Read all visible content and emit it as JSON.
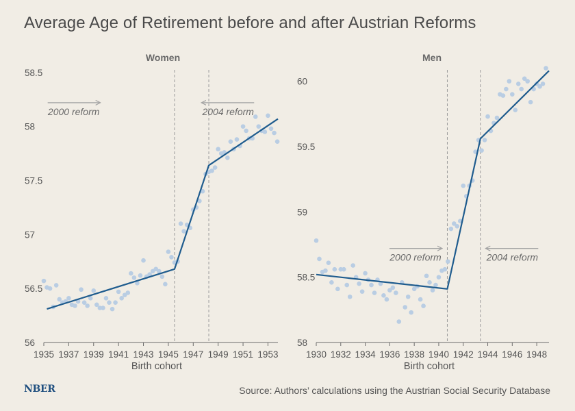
{
  "title": "Average Age of Retirement before and after Austrian Reforms",
  "logo": "NBER",
  "source": "Source: Authors’ calculations using the Austrian Social Security Database",
  "colors": {
    "background": "#f1ede5",
    "points": "#b9cde3",
    "line": "#1f5c8e",
    "ref_line": "#9a9a9a",
    "arrow": "#a3a3a3"
  },
  "chart_data": [
    {
      "type": "scatter",
      "panel_title": "Women",
      "xlabel": "Birth cohort",
      "xlim": [
        1935,
        1953.8
      ],
      "ylim": [
        56,
        58.6
      ],
      "xticks": [
        1935,
        1937,
        1939,
        1941,
        1943,
        1945,
        1947,
        1949,
        1951,
        1953
      ],
      "yticks": [
        56,
        56.5,
        57,
        57.5,
        58,
        58.5
      ],
      "ytick_labels": [
        "56",
        "56.5",
        "57",
        "57.5",
        "58",
        "58.5"
      ],
      "reference_lines": [
        1945.5,
        1948.25
      ],
      "annotations": [
        {
          "text": "2000 reform",
          "x": 1937.4,
          "y": 58.22,
          "arrow": "right"
        },
        {
          "text": "2004 reform",
          "x": 1949.8,
          "y": 58.22,
          "arrow": "left"
        }
      ],
      "points": [
        [
          1935.0,
          56.57
        ],
        [
          1935.25,
          56.51
        ],
        [
          1935.5,
          56.5
        ],
        [
          1935.75,
          56.33
        ],
        [
          1936.0,
          56.53
        ],
        [
          1936.25,
          56.4
        ],
        [
          1936.5,
          56.37
        ],
        [
          1936.75,
          56.38
        ],
        [
          1937.0,
          56.41
        ],
        [
          1937.25,
          56.35
        ],
        [
          1937.5,
          56.34
        ],
        [
          1937.75,
          56.38
        ],
        [
          1938.0,
          56.49
        ],
        [
          1938.25,
          56.37
        ],
        [
          1938.5,
          56.34
        ],
        [
          1938.75,
          56.41
        ],
        [
          1939.0,
          56.48
        ],
        [
          1939.25,
          56.35
        ],
        [
          1939.5,
          56.32
        ],
        [
          1939.75,
          56.32
        ],
        [
          1940.0,
          56.41
        ],
        [
          1940.25,
          56.37
        ],
        [
          1940.5,
          56.31
        ],
        [
          1940.75,
          56.37
        ],
        [
          1941.0,
          56.47
        ],
        [
          1941.25,
          56.41
        ],
        [
          1941.5,
          56.44
        ],
        [
          1941.75,
          56.46
        ],
        [
          1942.0,
          56.64
        ],
        [
          1942.25,
          56.6
        ],
        [
          1942.5,
          56.55
        ],
        [
          1942.75,
          56.62
        ],
        [
          1943.0,
          56.76
        ],
        [
          1943.25,
          56.61
        ],
        [
          1943.5,
          56.63
        ],
        [
          1943.75,
          56.66
        ],
        [
          1944.0,
          56.68
        ],
        [
          1944.25,
          56.66
        ],
        [
          1944.5,
          56.61
        ],
        [
          1944.75,
          56.54
        ],
        [
          1945.0,
          56.84
        ],
        [
          1945.25,
          56.79
        ],
        [
          1945.5,
          56.74
        ],
        [
          1945.75,
          56.75
        ],
        [
          1946.0,
          57.1
        ],
        [
          1946.25,
          57.03
        ],
        [
          1946.5,
          57.09
        ],
        [
          1946.75,
          57.06
        ],
        [
          1947.0,
          57.23
        ],
        [
          1947.25,
          57.25
        ],
        [
          1947.5,
          57.31
        ],
        [
          1947.75,
          57.4
        ],
        [
          1948.0,
          57.56
        ],
        [
          1948.25,
          57.58
        ],
        [
          1948.5,
          57.59
        ],
        [
          1948.75,
          57.62
        ],
        [
          1949.0,
          57.79
        ],
        [
          1949.25,
          57.75
        ],
        [
          1949.5,
          57.76
        ],
        [
          1949.75,
          57.71
        ],
        [
          1950.0,
          57.86
        ],
        [
          1950.25,
          57.79
        ],
        [
          1950.5,
          57.88
        ],
        [
          1950.75,
          57.82
        ],
        [
          1951.0,
          58.0
        ],
        [
          1951.25,
          57.96
        ],
        [
          1951.5,
          57.89
        ],
        [
          1951.75,
          57.89
        ],
        [
          1952.0,
          58.09
        ],
        [
          1952.25,
          58.0
        ],
        [
          1952.5,
          57.96
        ],
        [
          1952.75,
          57.95
        ],
        [
          1953.0,
          58.1
        ],
        [
          1953.25,
          57.98
        ],
        [
          1953.5,
          57.94
        ],
        [
          1953.75,
          57.86
        ]
      ],
      "fit": [
        [
          1935.25,
          56.31
        ],
        [
          1945.5,
          56.68
        ],
        [
          1948.25,
          57.64
        ],
        [
          1953.8,
          58.07
        ]
      ]
    },
    {
      "type": "scatter",
      "panel_title": "Men",
      "xlabel": "Birth cohort",
      "xlim": [
        1930,
        1949
      ],
      "ylim": [
        58,
        60.15
      ],
      "xticks": [
        1930,
        1932,
        1934,
        1936,
        1938,
        1940,
        1942,
        1944,
        1946,
        1948
      ],
      "yticks": [
        58,
        58.5,
        59,
        59.5,
        60
      ],
      "ytick_labels": [
        "58",
        "58.5",
        "59",
        "59.5",
        "60"
      ],
      "reference_lines": [
        1940.7,
        1943.4
      ],
      "annotations": [
        {
          "text": "2000 reform",
          "x": 1938.1,
          "y": 58.72,
          "arrow": "right"
        },
        {
          "text": "2004 reform",
          "x": 1946.0,
          "y": 58.72,
          "arrow": "left"
        }
      ],
      "points": [
        [
          1930.0,
          58.78
        ],
        [
          1930.25,
          58.64
        ],
        [
          1930.5,
          58.54
        ],
        [
          1930.75,
          58.55
        ],
        [
          1931.0,
          58.61
        ],
        [
          1931.25,
          58.46
        ],
        [
          1931.5,
          58.56
        ],
        [
          1931.75,
          58.41
        ],
        [
          1932.0,
          58.56
        ],
        [
          1932.25,
          58.56
        ],
        [
          1932.5,
          58.44
        ],
        [
          1932.75,
          58.35
        ],
        [
          1933.0,
          58.59
        ],
        [
          1933.25,
          58.5
        ],
        [
          1933.5,
          58.45
        ],
        [
          1933.75,
          58.39
        ],
        [
          1934.0,
          58.53
        ],
        [
          1934.25,
          58.48
        ],
        [
          1934.5,
          58.44
        ],
        [
          1934.75,
          58.38
        ],
        [
          1935.0,
          58.48
        ],
        [
          1935.25,
          58.45
        ],
        [
          1935.5,
          58.36
        ],
        [
          1935.75,
          58.33
        ],
        [
          1936.0,
          58.4
        ],
        [
          1936.25,
          58.42
        ],
        [
          1936.5,
          58.38
        ],
        [
          1936.75,
          58.16
        ],
        [
          1937.0,
          58.46
        ],
        [
          1937.25,
          58.27
        ],
        [
          1937.5,
          58.35
        ],
        [
          1937.75,
          58.23
        ],
        [
          1938.0,
          58.41
        ],
        [
          1938.25,
          58.43
        ],
        [
          1938.5,
          58.33
        ],
        [
          1938.75,
          58.28
        ],
        [
          1939.0,
          58.51
        ],
        [
          1939.25,
          58.46
        ],
        [
          1939.5,
          58.4
        ],
        [
          1939.75,
          58.44
        ],
        [
          1940.0,
          58.5
        ],
        [
          1940.25,
          58.55
        ],
        [
          1940.5,
          58.56
        ],
        [
          1940.75,
          58.62
        ],
        [
          1941.0,
          58.87
        ],
        [
          1941.25,
          58.91
        ],
        [
          1941.5,
          58.89
        ],
        [
          1941.75,
          58.93
        ],
        [
          1942.0,
          59.2
        ],
        [
          1942.25,
          59.12
        ],
        [
          1942.5,
          59.2
        ],
        [
          1942.75,
          59.24
        ],
        [
          1943.0,
          59.46
        ],
        [
          1943.25,
          59.55
        ],
        [
          1943.5,
          59.47
        ],
        [
          1943.75,
          59.55
        ],
        [
          1944.0,
          59.73
        ],
        [
          1944.25,
          59.62
        ],
        [
          1944.5,
          59.68
        ],
        [
          1944.75,
          59.72
        ],
        [
          1945.0,
          59.9
        ],
        [
          1945.25,
          59.89
        ],
        [
          1945.5,
          59.94
        ],
        [
          1945.75,
          60.0
        ],
        [
          1946.0,
          59.9
        ],
        [
          1946.25,
          59.78
        ],
        [
          1946.5,
          59.98
        ],
        [
          1946.75,
          59.94
        ],
        [
          1947.0,
          60.02
        ],
        [
          1947.25,
          60.0
        ],
        [
          1947.5,
          59.84
        ],
        [
          1947.75,
          59.94
        ],
        [
          1948.0,
          59.98
        ],
        [
          1948.25,
          59.96
        ],
        [
          1948.5,
          59.98
        ],
        [
          1948.75,
          60.1
        ]
      ],
      "fit": [
        [
          1930.0,
          58.52
        ],
        [
          1940.7,
          58.41
        ],
        [
          1943.4,
          59.56
        ],
        [
          1949.0,
          60.08
        ]
      ]
    }
  ]
}
